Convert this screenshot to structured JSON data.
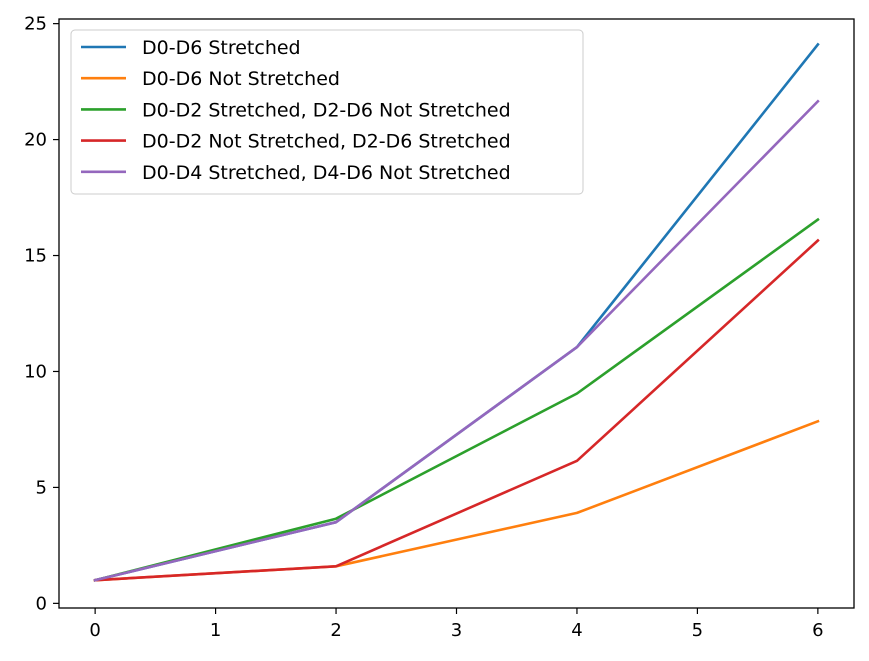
{
  "chart_data": {
    "type": "line",
    "title": "",
    "xlabel": "",
    "ylabel": "",
    "xlim": [
      -0.3,
      6.3
    ],
    "ylim": [
      -0.2,
      25.2
    ],
    "xticks": [
      0,
      1,
      2,
      3,
      4,
      5,
      6
    ],
    "yticks": [
      0,
      5,
      10,
      15,
      20,
      25
    ],
    "grid": false,
    "legend_position": "top-left",
    "series": [
      {
        "name": "D0-D6 Stretched",
        "color": "#1f77b4",
        "x": [
          0,
          2,
          4,
          6
        ],
        "y": [
          1.0,
          3.5,
          11.05,
          24.1
        ]
      },
      {
        "name": "D0-D6 Not Stretched",
        "color": "#ff7f0e",
        "x": [
          0,
          2,
          4,
          6
        ],
        "y": [
          1.0,
          1.6,
          3.9,
          7.85
        ]
      },
      {
        "name": "D0-D2 Stretched, D2-D6 Not Stretched",
        "color": "#2ca02c",
        "x": [
          0,
          2,
          4,
          6
        ],
        "y": [
          1.0,
          3.65,
          9.05,
          16.55
        ]
      },
      {
        "name": "D0-D2 Not Stretched, D2-D6 Stretched",
        "color": "#d62728",
        "x": [
          0,
          2,
          4,
          6
        ],
        "y": [
          1.0,
          1.6,
          6.15,
          15.65
        ]
      },
      {
        "name": "D0-D4 Stretched, D4-D6 Not Stretched",
        "color": "#9467bd",
        "x": [
          0,
          2,
          4,
          6
        ],
        "y": [
          1.0,
          3.5,
          11.05,
          21.65
        ]
      }
    ]
  }
}
